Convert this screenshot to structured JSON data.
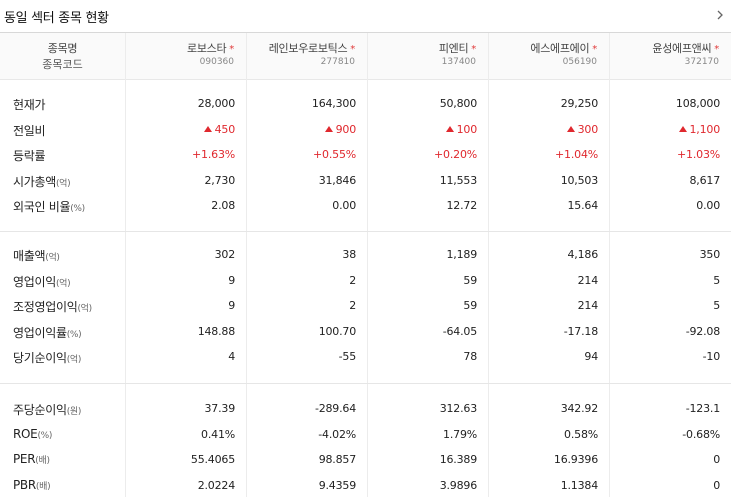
{
  "title": "동일 섹터 종목 현황",
  "header": {
    "name_label": "종목명",
    "code_label": "종목코드",
    "stocks": [
      {
        "name": "로보스타",
        "code": "090360"
      },
      {
        "name": "레인보우로보틱스",
        "code": "277810"
      },
      {
        "name": "피엔티",
        "code": "137400"
      },
      {
        "name": "에스에프에이",
        "code": "056190"
      },
      {
        "name": "윤성에프앤씨",
        "code": "372170"
      }
    ],
    "star": "*"
  },
  "colors": {
    "up": "#e0282e",
    "star": "#e03a3a"
  },
  "sections": [
    [
      {
        "label": "현재가",
        "unit": "",
        "values": [
          "28,000",
          "164,300",
          "50,800",
          "29,250",
          "108,000"
        ]
      },
      {
        "label": "전일비",
        "unit": "",
        "values": [
          "450",
          "900",
          "100",
          "300",
          "1,100"
        ],
        "style": "up-arrow"
      },
      {
        "label": "등락률",
        "unit": "",
        "values": [
          "+1.63%",
          "+0.55%",
          "+0.20%",
          "+1.04%",
          "+1.03%"
        ],
        "style": "up"
      },
      {
        "label": "시가총액",
        "unit": "(억)",
        "values": [
          "2,730",
          "31,846",
          "11,553",
          "10,503",
          "8,617"
        ]
      },
      {
        "label": "외국인 비율",
        "unit": "(%)",
        "values": [
          "2.08",
          "0.00",
          "12.72",
          "15.64",
          "0.00"
        ]
      }
    ],
    [
      {
        "label": "매출액",
        "unit": "(억)",
        "values": [
          "302",
          "38",
          "1,189",
          "4,186",
          "350"
        ]
      },
      {
        "label": "영업이익",
        "unit": "(억)",
        "values": [
          "9",
          "2",
          "59",
          "214",
          "5"
        ]
      },
      {
        "label": "조정영업이익",
        "unit": "(억)",
        "values": [
          "9",
          "2",
          "59",
          "214",
          "5"
        ]
      },
      {
        "label": "영업이익률",
        "unit": "(%)",
        "values": [
          "148.88",
          "100.70",
          "-64.05",
          "-17.18",
          "-92.08"
        ]
      },
      {
        "label": "당기순이익",
        "unit": "(억)",
        "values": [
          "4",
          "-55",
          "78",
          "94",
          "-10"
        ]
      }
    ],
    [
      {
        "label": "주당순이익",
        "unit": "(원)",
        "values": [
          "37.39",
          "-289.64",
          "312.63",
          "342.92",
          "-123.1"
        ]
      },
      {
        "label": "ROE",
        "unit": "(%)",
        "values": [
          "0.41%",
          "-4.02%",
          "1.79%",
          "0.58%",
          "-0.68%"
        ]
      },
      {
        "label": "PER",
        "unit": "(배)",
        "values": [
          "55.4065",
          "98.857",
          "16.389",
          "16.9396",
          "0"
        ]
      },
      {
        "label": "PBR",
        "unit": "(배)",
        "values": [
          "2.0224",
          "9.4359",
          "3.9896",
          "1.1384",
          "0"
        ]
      }
    ]
  ],
  "icons": {
    "more": "chevron-right-icon"
  }
}
